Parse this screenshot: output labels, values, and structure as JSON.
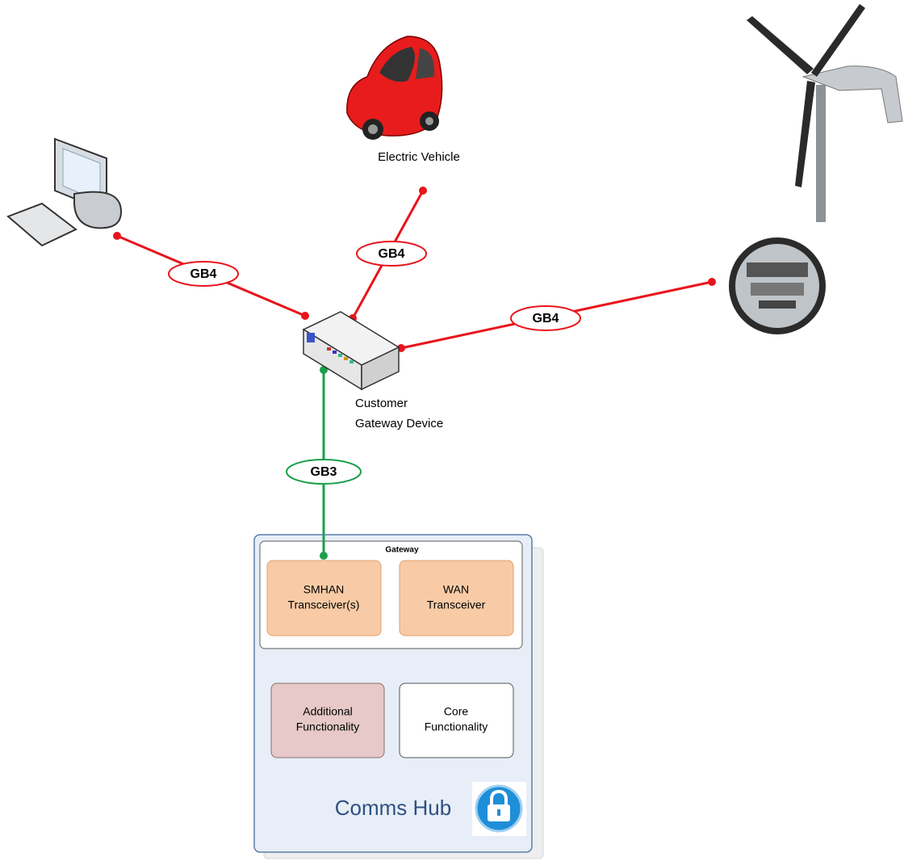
{
  "devices": {
    "electric_vehicle": {
      "label": "Electric Vehicle"
    },
    "gateway_device": {
      "label_lines": [
        "Customer",
        "Gateway Device"
      ]
    }
  },
  "links": [
    {
      "label": "GB4"
    },
    {
      "label": "GB4"
    },
    {
      "label": "GB4"
    },
    {
      "label": "GB3"
    }
  ],
  "comms_hub": {
    "title": "Comms Hub",
    "gateway": {
      "title": "Gateway",
      "blocks": [
        {
          "label_lines": [
            "SMHAN",
            "Transceiver(s)"
          ]
        },
        {
          "label_lines": [
            "WAN",
            "Transceiver"
          ]
        }
      ]
    },
    "blocks": [
      {
        "label_lines": [
          "Additional",
          "Functionality"
        ]
      },
      {
        "label_lines": [
          "Core",
          "Functionality"
        ]
      }
    ]
  }
}
